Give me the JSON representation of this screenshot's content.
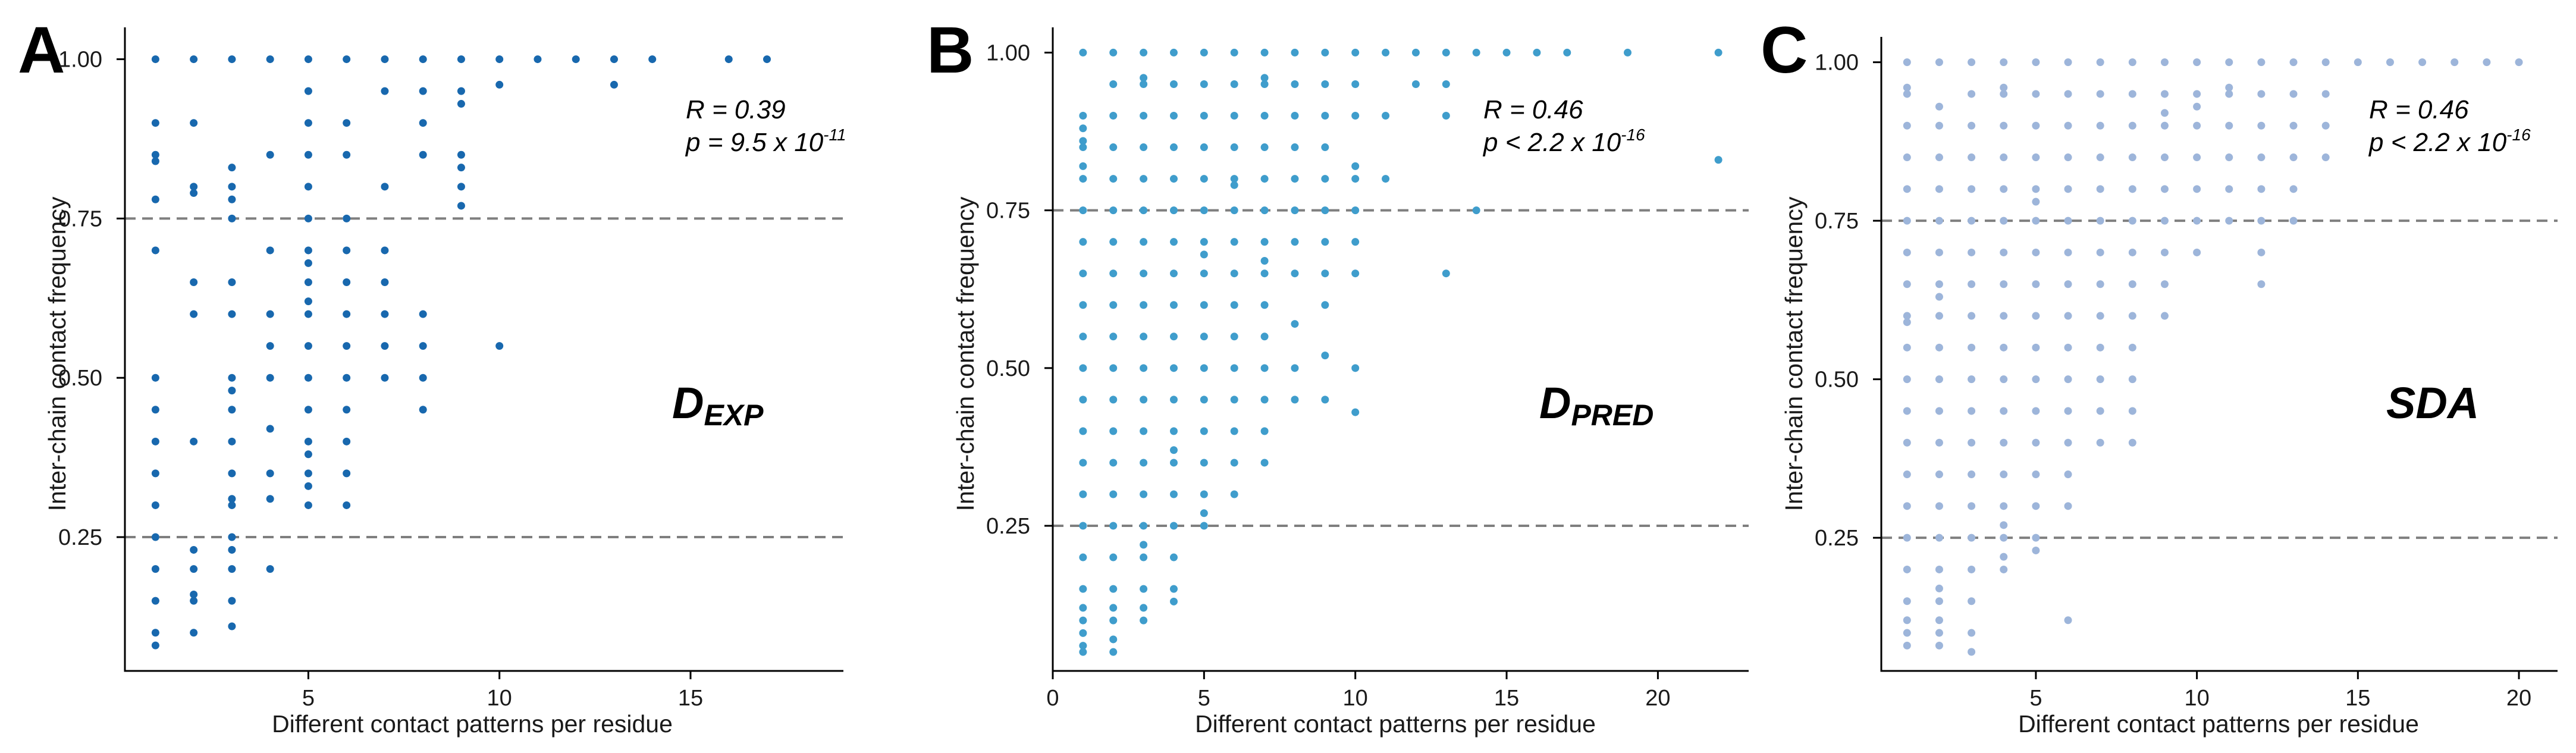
{
  "chart_data": [
    {
      "type": "scatter",
      "panel": "A",
      "label_main": "D",
      "label_sub": "EXP",
      "color": "#1868ae",
      "xlabel": "Different contact patterns per residue",
      "ylabel": "Inter-chain contact frequency",
      "xlim": [
        0.2,
        19
      ],
      "ylim": [
        0.04,
        1.05
      ],
      "xticks": [
        "5",
        "10",
        "15"
      ],
      "yticks": [
        "0.25",
        "0.50",
        "0.75",
        "1.00"
      ],
      "hlines": [
        0.25,
        0.75
      ],
      "stat_r": "R = 0.39",
      "stat_p_main": "p = 9.5 x 10",
      "stat_p_exp": "-11",
      "series": [
        {
          "x": 1,
          "y": [
            1.0,
            0.9,
            0.85,
            0.84,
            0.78,
            0.7,
            0.5,
            0.45,
            0.4,
            0.35,
            0.3,
            0.25,
            0.2,
            0.15,
            0.1,
            0.08
          ]
        },
        {
          "x": 2,
          "y": [
            1.0,
            0.9,
            0.8,
            0.79,
            0.65,
            0.6,
            0.4,
            0.23,
            0.2,
            0.16,
            0.15,
            0.1
          ]
        },
        {
          "x": 3,
          "y": [
            1.0,
            0.83,
            0.8,
            0.78,
            0.75,
            0.65,
            0.6,
            0.5,
            0.48,
            0.45,
            0.4,
            0.35,
            0.31,
            0.3,
            0.25,
            0.23,
            0.2,
            0.15,
            0.11
          ]
        },
        {
          "x": 4,
          "y": [
            1.0,
            0.85,
            0.7,
            0.6,
            0.55,
            0.5,
            0.42,
            0.35,
            0.31,
            0.2
          ]
        },
        {
          "x": 5,
          "y": [
            1.0,
            0.95,
            0.9,
            0.85,
            0.8,
            0.75,
            0.7,
            0.68,
            0.65,
            0.62,
            0.6,
            0.55,
            0.5,
            0.45,
            0.4,
            0.38,
            0.35,
            0.33,
            0.3
          ]
        },
        {
          "x": 6,
          "y": [
            1.0,
            0.9,
            0.85,
            0.75,
            0.7,
            0.65,
            0.6,
            0.55,
            0.5,
            0.45,
            0.4,
            0.35,
            0.3
          ]
        },
        {
          "x": 7,
          "y": [
            1.0,
            0.95,
            0.8,
            0.7,
            0.65,
            0.6,
            0.55,
            0.5
          ]
        },
        {
          "x": 8,
          "y": [
            1.0,
            0.95,
            0.9,
            0.85,
            0.6,
            0.55,
            0.5,
            0.45
          ]
        },
        {
          "x": 9,
          "y": [
            1.0,
            0.95,
            0.93,
            0.85,
            0.83,
            0.8,
            0.77
          ]
        },
        {
          "x": 10,
          "y": [
            1.0,
            0.96,
            0.55
          ]
        },
        {
          "x": 11,
          "y": [
            1.0
          ]
        },
        {
          "x": 12,
          "y": [
            1.0
          ]
        },
        {
          "x": 13,
          "y": [
            1.0,
            0.96
          ]
        },
        {
          "x": 14,
          "y": [
            1.0
          ]
        },
        {
          "x": 16,
          "y": [
            1.0
          ]
        },
        {
          "x": 17,
          "y": [
            1.0
          ]
        }
      ]
    },
    {
      "type": "scatter",
      "panel": "B",
      "label_main": "D",
      "label_sub": "PRED",
      "color": "#3f9dcc",
      "xlabel": "Different contact patterns per residue",
      "ylabel": "Inter-chain contact frequency",
      "xlim": [
        0,
        23
      ],
      "ylim": [
        0.02,
        1.04
      ],
      "xticks": [
        "0",
        "5",
        "10",
        "15",
        "20"
      ],
      "yticks": [
        "0.25",
        "0.50",
        "0.75",
        "1.00"
      ],
      "hlines": [
        0.25,
        0.75
      ],
      "stat_r": "R = 0.46",
      "stat_p_main": "p < 2.2 x 10",
      "stat_p_exp": "-16",
      "series": [
        {
          "x": 1,
          "y": [
            1.0,
            0.9,
            0.88,
            0.86,
            0.85,
            0.82,
            0.8,
            0.75,
            0.7,
            0.65,
            0.6,
            0.55,
            0.5,
            0.45,
            0.4,
            0.35,
            0.3,
            0.25,
            0.2,
            0.15,
            0.12,
            0.1,
            0.08,
            0.06,
            0.05
          ]
        },
        {
          "x": 2,
          "y": [
            1.0,
            0.95,
            0.9,
            0.85,
            0.8,
            0.75,
            0.7,
            0.65,
            0.6,
            0.55,
            0.5,
            0.45,
            0.4,
            0.35,
            0.3,
            0.25,
            0.2,
            0.15,
            0.12,
            0.1,
            0.07,
            0.05
          ]
        },
        {
          "x": 3,
          "y": [
            1.0,
            0.96,
            0.95,
            0.9,
            0.85,
            0.8,
            0.75,
            0.7,
            0.65,
            0.6,
            0.55,
            0.5,
            0.45,
            0.4,
            0.35,
            0.3,
            0.25,
            0.22,
            0.2,
            0.15,
            0.12,
            0.1
          ]
        },
        {
          "x": 4,
          "y": [
            1.0,
            0.95,
            0.9,
            0.85,
            0.8,
            0.75,
            0.7,
            0.65,
            0.6,
            0.55,
            0.5,
            0.45,
            0.4,
            0.37,
            0.35,
            0.3,
            0.25,
            0.2,
            0.15,
            0.13
          ]
        },
        {
          "x": 5,
          "y": [
            1.0,
            0.95,
            0.9,
            0.85,
            0.8,
            0.75,
            0.7,
            0.68,
            0.65,
            0.6,
            0.55,
            0.5,
            0.45,
            0.4,
            0.35,
            0.3,
            0.27,
            0.25
          ]
        },
        {
          "x": 6,
          "y": [
            1.0,
            0.95,
            0.9,
            0.85,
            0.8,
            0.79,
            0.75,
            0.7,
            0.65,
            0.6,
            0.55,
            0.5,
            0.45,
            0.4,
            0.35,
            0.3
          ]
        },
        {
          "x": 7,
          "y": [
            1.0,
            0.96,
            0.95,
            0.9,
            0.85,
            0.8,
            0.75,
            0.7,
            0.67,
            0.65,
            0.6,
            0.55,
            0.5,
            0.45,
            0.4,
            0.35
          ]
        },
        {
          "x": 8,
          "y": [
            1.0,
            0.95,
            0.9,
            0.85,
            0.8,
            0.75,
            0.7,
            0.65,
            0.57,
            0.5,
            0.45
          ]
        },
        {
          "x": 9,
          "y": [
            1.0,
            0.95,
            0.9,
            0.85,
            0.8,
            0.75,
            0.7,
            0.65,
            0.6,
            0.52,
            0.45
          ]
        },
        {
          "x": 10,
          "y": [
            1.0,
            0.95,
            0.9,
            0.82,
            0.8,
            0.75,
            0.7,
            0.65,
            0.5,
            0.43
          ]
        },
        {
          "x": 11,
          "y": [
            1.0,
            0.9,
            0.8
          ]
        },
        {
          "x": 12,
          "y": [
            1.0,
            0.95
          ]
        },
        {
          "x": 13,
          "y": [
            1.0,
            0.95,
            0.9,
            0.65
          ]
        },
        {
          "x": 14,
          "y": [
            1.0,
            0.75
          ]
        },
        {
          "x": 15,
          "y": [
            1.0
          ]
        },
        {
          "x": 16,
          "y": [
            1.0
          ]
        },
        {
          "x": 17,
          "y": [
            1.0
          ]
        },
        {
          "x": 19,
          "y": [
            1.0
          ]
        },
        {
          "x": 22,
          "y": [
            1.0,
            0.83
          ]
        }
      ]
    },
    {
      "type": "scatter",
      "panel": "C",
      "label_main": "SDA",
      "label_sub": "",
      "color": "#9db5da",
      "xlabel": "Different contact patterns per residue",
      "ylabel": "Inter-chain contact frequency",
      "xlim": [
        0.2,
        21.2
      ],
      "ylim": [
        0.04,
        1.04
      ],
      "xticks": [
        "5",
        "10",
        "15",
        "20"
      ],
      "yticks": [
        "0.25",
        "0.50",
        "0.75",
        "1.00"
      ],
      "hlines": [
        0.25,
        0.75
      ],
      "stat_r": "R = 0.46",
      "stat_p_main": "p < 2.2 x 10",
      "stat_p_exp": "-16",
      "series": [
        {
          "x": 1,
          "y": [
            1.0,
            0.96,
            0.95,
            0.9,
            0.85,
            0.8,
            0.75,
            0.7,
            0.65,
            0.6,
            0.59,
            0.55,
            0.5,
            0.45,
            0.4,
            0.35,
            0.3,
            0.25,
            0.2,
            0.15,
            0.12,
            0.1,
            0.08
          ]
        },
        {
          "x": 2,
          "y": [
            1.0,
            0.93,
            0.9,
            0.85,
            0.8,
            0.75,
            0.7,
            0.65,
            0.63,
            0.6,
            0.55,
            0.5,
            0.45,
            0.4,
            0.35,
            0.3,
            0.25,
            0.2,
            0.17,
            0.15,
            0.12,
            0.1,
            0.08
          ]
        },
        {
          "x": 3,
          "y": [
            1.0,
            0.95,
            0.9,
            0.85,
            0.8,
            0.75,
            0.7,
            0.65,
            0.6,
            0.55,
            0.5,
            0.45,
            0.4,
            0.35,
            0.3,
            0.25,
            0.2,
            0.15,
            0.1,
            0.07
          ]
        },
        {
          "x": 4,
          "y": [
            1.0,
            0.96,
            0.95,
            0.9,
            0.85,
            0.8,
            0.75,
            0.7,
            0.65,
            0.6,
            0.55,
            0.5,
            0.45,
            0.4,
            0.35,
            0.3,
            0.27,
            0.25,
            0.22,
            0.2
          ]
        },
        {
          "x": 5,
          "y": [
            1.0,
            0.95,
            0.9,
            0.85,
            0.8,
            0.78,
            0.75,
            0.7,
            0.65,
            0.6,
            0.55,
            0.5,
            0.45,
            0.4,
            0.35,
            0.3,
            0.25,
            0.23
          ]
        },
        {
          "x": 6,
          "y": [
            1.0,
            0.95,
            0.9,
            0.85,
            0.8,
            0.75,
            0.7,
            0.65,
            0.6,
            0.55,
            0.5,
            0.45,
            0.4,
            0.35,
            0.3,
            0.12
          ]
        },
        {
          "x": 7,
          "y": [
            1.0,
            0.95,
            0.9,
            0.85,
            0.8,
            0.75,
            0.7,
            0.65,
            0.6,
            0.55,
            0.5,
            0.45,
            0.4
          ]
        },
        {
          "x": 8,
          "y": [
            1.0,
            0.95,
            0.9,
            0.85,
            0.8,
            0.75,
            0.7,
            0.65,
            0.6,
            0.55,
            0.5,
            0.45,
            0.4
          ]
        },
        {
          "x": 9,
          "y": [
            1.0,
            0.95,
            0.92,
            0.9,
            0.85,
            0.8,
            0.75,
            0.7,
            0.65,
            0.6
          ]
        },
        {
          "x": 10,
          "y": [
            1.0,
            0.95,
            0.93,
            0.9,
            0.85,
            0.8,
            0.75,
            0.7
          ]
        },
        {
          "x": 11,
          "y": [
            1.0,
            0.96,
            0.95,
            0.9,
            0.85,
            0.8,
            0.75
          ]
        },
        {
          "x": 12,
          "y": [
            1.0,
            0.95,
            0.9,
            0.85,
            0.8,
            0.75,
            0.7,
            0.65
          ]
        },
        {
          "x": 13,
          "y": [
            1.0,
            0.95,
            0.9,
            0.85,
            0.8,
            0.75
          ]
        },
        {
          "x": 14,
          "y": [
            1.0,
            0.95,
            0.9,
            0.85
          ]
        },
        {
          "x": 15,
          "y": [
            1.0
          ]
        },
        {
          "x": 16,
          "y": [
            1.0
          ]
        },
        {
          "x": 17,
          "y": [
            1.0
          ]
        },
        {
          "x": 18,
          "y": [
            1.0
          ]
        },
        {
          "x": 19,
          "y": [
            1.0
          ]
        },
        {
          "x": 20,
          "y": [
            1.0
          ]
        }
      ]
    }
  ]
}
